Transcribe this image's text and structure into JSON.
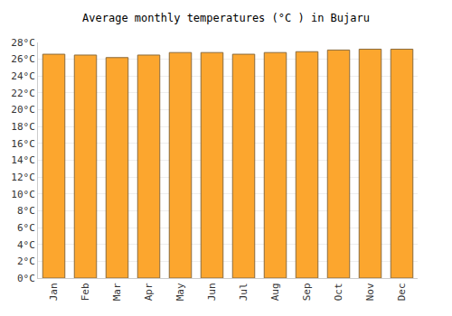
{
  "chart_data": {
    "type": "bar",
    "title": "Average monthly temperatures (°C ) in Bujaru",
    "categories": [
      "Jan",
      "Feb",
      "Mar",
      "Apr",
      "May",
      "Jun",
      "Jul",
      "Aug",
      "Sep",
      "Oct",
      "Nov",
      "Dec"
    ],
    "values": [
      26.6,
      26.5,
      26.2,
      26.5,
      26.8,
      26.8,
      26.6,
      26.8,
      26.9,
      27.1,
      27.2,
      27.2
    ],
    "color": "#fca62e",
    "ylim": [
      0,
      28
    ],
    "yticks": [
      {
        "value": 0,
        "label": "0°C"
      },
      {
        "value": 2,
        "label": "2°C"
      },
      {
        "value": 4,
        "label": "4°C"
      },
      {
        "value": 6,
        "label": "6°C"
      },
      {
        "value": 8,
        "label": "8°C"
      },
      {
        "value": 10,
        "label": "10°C"
      },
      {
        "value": 12,
        "label": "12°C"
      },
      {
        "value": 14,
        "label": "14°C"
      },
      {
        "value": 16,
        "label": "16°C"
      },
      {
        "value": 18,
        "label": "18°C"
      },
      {
        "value": 20,
        "label": "20°C"
      },
      {
        "value": 22,
        "label": "22°C"
      },
      {
        "value": 24,
        "label": "24°C"
      },
      {
        "value": 26,
        "label": "26°C"
      },
      {
        "value": 28,
        "label": "28°C"
      }
    ],
    "grid": true
  }
}
